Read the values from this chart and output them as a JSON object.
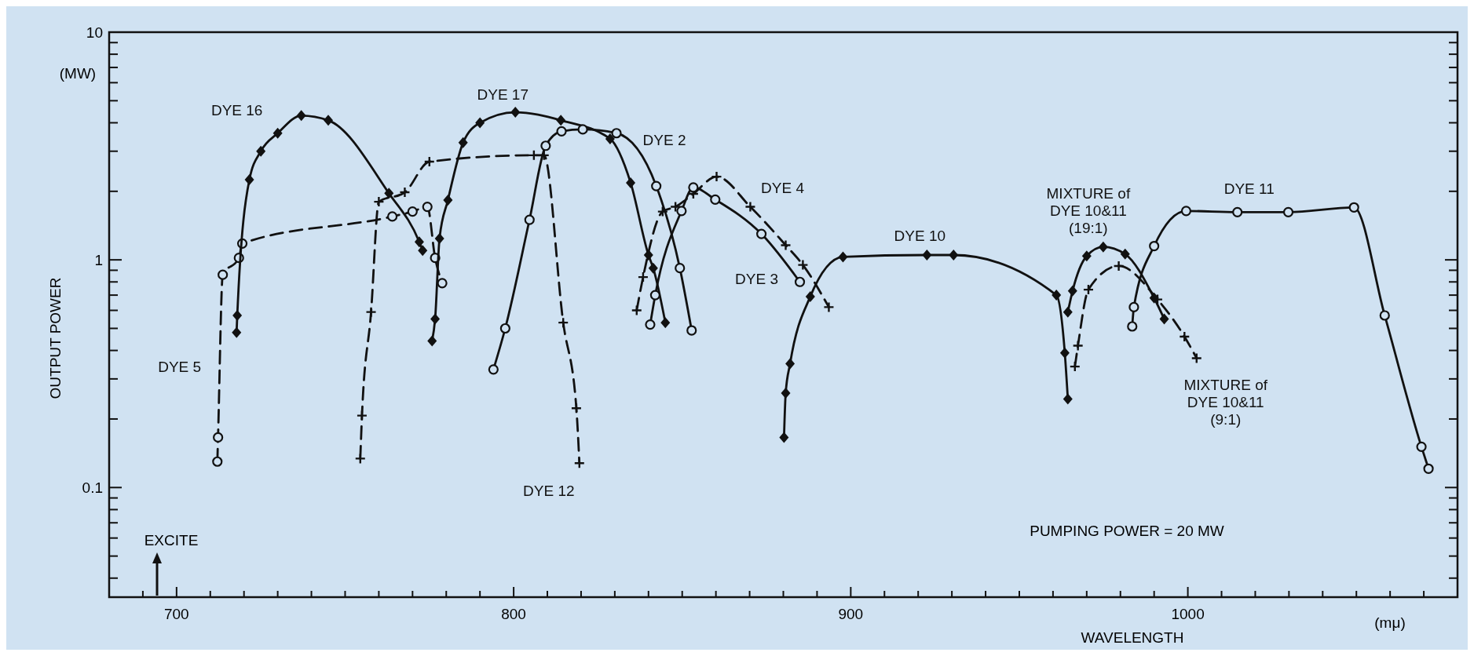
{
  "chart_data": {
    "type": "line",
    "xlabel": "WAVELENGTH",
    "ylabel": "OUTPUT POWER",
    "log": "y",
    "xlim": [
      680,
      1080
    ],
    "ylim": [
      0.033,
      10
    ],
    "xticks": [
      {
        "value": 690,
        "label": null
      },
      700,
      {
        "value": 710,
        "label": null
      },
      {
        "value": 720,
        "label": null
      },
      {
        "value": 730,
        "label": null
      },
      {
        "value": 740,
        "label": null
      },
      {
        "value": 750,
        "label": null
      },
      {
        "value": 760,
        "label": null
      },
      {
        "value": 770,
        "label": null
      },
      {
        "value": 780,
        "label": null
      },
      {
        "value": 790,
        "label": null
      },
      800,
      {
        "value": 810,
        "label": null
      },
      {
        "value": 820,
        "label": null
      },
      {
        "value": 830,
        "label": null
      },
      {
        "value": 840,
        "label": null
      },
      {
        "value": 850,
        "label": null
      },
      {
        "value": 860,
        "label": null
      },
      {
        "value": 870,
        "label": null
      },
      {
        "value": 880,
        "label": null
      },
      {
        "value": 890,
        "label": null
      },
      900,
      {
        "value": 910,
        "label": null
      },
      {
        "value": 920,
        "label": null
      },
      {
        "value": 930,
        "label": null
      },
      {
        "value": 940,
        "label": null
      },
      {
        "value": 950,
        "label": null
      },
      {
        "value": 960,
        "label": null
      },
      {
        "value": 970,
        "label": null
      },
      {
        "value": 980,
        "label": null
      },
      {
        "value": 990,
        "label": null
      },
      1000,
      {
        "value": 1010,
        "label": null
      },
      {
        "value": 1020,
        "label": null
      },
      {
        "value": 1030,
        "label": null
      },
      {
        "value": 1040,
        "label": null
      },
      {
        "value": 1050,
        "label": null
      },
      {
        "value": 1060,
        "label": null
      },
      {
        "value": 1070,
        "label": null
      }
    ],
    "yticks": [
      {
        "value": 0.04,
        "label": null
      },
      {
        "value": 0.05,
        "label": null
      },
      {
        "value": 0.06,
        "label": null
      },
      {
        "value": 0.07,
        "label": null
      },
      {
        "value": 0.08,
        "label": null
      },
      {
        "value": 0.09,
        "label": null
      },
      0.1,
      {
        "value": 0.2,
        "label": null
      },
      {
        "value": 0.3,
        "label": null
      },
      {
        "value": 0.4,
        "label": null
      },
      {
        "value": 0.5,
        "label": null
      },
      {
        "value": 0.6,
        "label": null
      },
      {
        "value": 0.7,
        "label": null
      },
      {
        "value": 0.8,
        "label": null
      },
      {
        "value": 0.9,
        "label": null
      },
      1,
      {
        "value": 2,
        "label": null
      },
      {
        "value": 3,
        "label": null
      },
      {
        "value": 4,
        "label": null
      },
      {
        "value": 5,
        "label": null
      },
      {
        "value": 6,
        "label": null
      },
      {
        "value": 7,
        "label": null
      },
      {
        "value": 8,
        "label": null
      },
      {
        "value": 9,
        "label": null
      },
      10
    ],
    "grid": false,
    "annotations": [
      "(MW)",
      "(mμ)",
      "EXCITE",
      "PUMPING POWER = 20 MW"
    ],
    "series": [
      {
        "name": "DYE 5",
        "color": "#111111",
        "marker": "circle",
        "line_style": "dashed",
        "x": [
          712.1,
          712.3,
          713.7,
          718.5,
          719.5,
          764,
          770,
          774.4,
          776.7,
          778.8
        ],
        "values": [
          0.13,
          0.166,
          0.86,
          1.02,
          1.18,
          1.55,
          1.63,
          1.71,
          1.02,
          0.79
        ]
      },
      {
        "name": "DYE 16",
        "color": "#111111",
        "marker": "diamond",
        "line_style": "solid",
        "x": [
          717.8,
          718,
          721.6,
          725,
          730,
          737,
          745,
          763,
          772,
          773
        ],
        "values": [
          0.48,
          0.57,
          2.25,
          3.0,
          3.6,
          4.3,
          4.1,
          1.96,
          1.2,
          1.1
        ]
      },
      {
        "name": "DYE 12",
        "color": "#111111",
        "marker": "cross",
        "line_style": "dashed",
        "x": [
          754.5,
          755,
          757.7,
          760,
          767.7,
          775,
          806,
          809,
          814.7,
          818.6,
          819.5
        ],
        "values": [
          0.134,
          0.207,
          0.59,
          1.8,
          1.98,
          2.7,
          2.88,
          2.88,
          0.53,
          0.223,
          0.128
        ]
      },
      {
        "name": "DYE 17",
        "color": "#111111",
        "marker": "diamond",
        "line_style": "solid",
        "x": [
          775.8,
          776.7,
          778,
          780.5,
          785,
          790,
          800.5,
          814,
          828.6,
          834.7,
          840,
          841.4,
          845
        ],
        "values": [
          0.44,
          0.55,
          1.24,
          1.83,
          3.27,
          4.0,
          4.45,
          4.1,
          3.4,
          2.18,
          1.05,
          0.92,
          0.53
        ]
      },
      {
        "name": "DYE 2",
        "color": "#111111",
        "marker": "circle",
        "line_style": "solid",
        "x": [
          794,
          797.5,
          804.7,
          809.5,
          814.2,
          820.5,
          830.5,
          842.3,
          849.3,
          852.8
        ],
        "values": [
          0.33,
          0.5,
          1.5,
          3.17,
          3.67,
          3.74,
          3.6,
          2.11,
          0.92,
          0.49
        ]
      },
      {
        "name": "DYE 4",
        "color": "#111111",
        "marker": "cross",
        "line_style": "dashed",
        "x": [
          836.5,
          838.4,
          844.2,
          848,
          853.3,
          860.2,
          870.2,
          880.7,
          885.8,
          893.5
        ],
        "values": [
          0.6,
          0.84,
          1.63,
          1.71,
          1.95,
          2.32,
          1.71,
          1.16,
          0.95,
          0.62
        ]
      },
      {
        "name": "DYE 3",
        "color": "#111111",
        "marker": "circle",
        "line_style": "solid",
        "x": [
          840.5,
          842,
          849.8,
          853.3,
          859.8,
          873.5,
          884.9
        ],
        "values": [
          0.52,
          0.7,
          1.64,
          2.08,
          1.84,
          1.3,
          0.8
        ]
      },
      {
        "name": "DYE 10",
        "color": "#111111",
        "marker": "diamond",
        "line_style": "solid",
        "x": [
          880.2,
          880.7,
          882,
          888,
          897.7,
          922.6,
          930.5,
          961,
          963.5,
          964.4
        ],
        "values": [
          0.166,
          0.26,
          0.35,
          0.69,
          1.03,
          1.05,
          1.05,
          0.7,
          0.39,
          0.245
        ]
      },
      {
        "name": "MIXTURE of DYE 10&11 (19:1)",
        "color": "#111111",
        "marker": "diamond",
        "line_style": "solid",
        "x": [
          964.4,
          965.8,
          970,
          974.9,
          981.4,
          990,
          993
        ],
        "values": [
          0.59,
          0.73,
          1.04,
          1.14,
          1.06,
          0.68,
          0.55
        ]
      },
      {
        "name": "MIXTURE of DYE 10&11 (9:1)",
        "color": "#111111",
        "marker": "cross",
        "line_style": "dashed",
        "x": [
          966.5,
          967.4,
          970.5,
          979.5,
          991,
          999,
          1002.6
        ],
        "values": [
          0.34,
          0.42,
          0.74,
          0.94,
          0.67,
          0.46,
          0.37
        ]
      },
      {
        "name": "DYE 11",
        "color": "#111111",
        "marker": "circle",
        "line_style": "solid",
        "x": [
          983.5,
          984,
          990,
          999.5,
          1014.7,
          1029.8,
          1049.3,
          1058.4,
          1069.3,
          1071.4
        ],
        "values": [
          0.51,
          0.62,
          1.15,
          1.64,
          1.62,
          1.62,
          1.7,
          0.57,
          0.151,
          0.121
        ]
      }
    ]
  }
}
